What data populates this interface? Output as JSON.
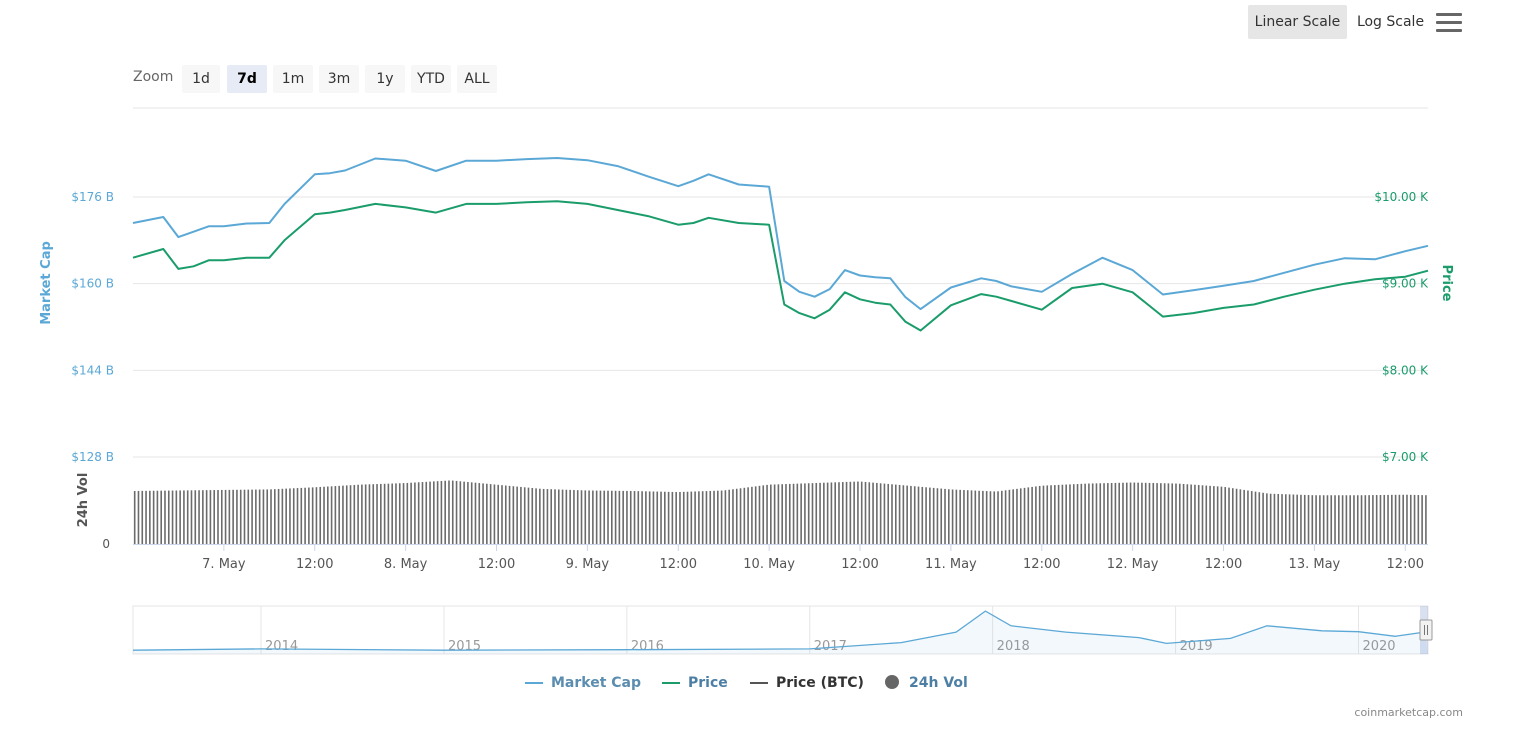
{
  "toolbar": {
    "linear_scale_label": "Linear Scale",
    "log_scale_label": "Log Scale",
    "menu_icon": "hamburger-menu-icon"
  },
  "zoom": {
    "label": "Zoom",
    "buttons": [
      "1d",
      "7d",
      "1m",
      "3m",
      "1y",
      "YTD",
      "ALL"
    ],
    "active": "7d"
  },
  "chart_data": {
    "type": "line",
    "left_axis": {
      "title": "Market Cap",
      "ticks": [
        "$176 B",
        "$160 B",
        "$144 B",
        "$128 B"
      ],
      "tick_values": [
        176,
        160,
        144,
        128
      ],
      "unit": "B USD",
      "color": "#5ba8d6"
    },
    "right_axis": {
      "title": "Price",
      "ticks": [
        "$10.00 K",
        "$9.00 K",
        "$8.00 K",
        "$7.00 K"
      ],
      "tick_values": [
        10.0,
        9.0,
        8.0,
        7.0
      ],
      "unit": "K USD",
      "color": "#1a9c6b"
    },
    "volume_axis": {
      "title": "24h Vol",
      "ticks": [
        "0"
      ]
    },
    "x_ticks": [
      "7. May",
      "12:00",
      "8. May",
      "12:00",
      "9. May",
      "12:00",
      "10. May",
      "12:00",
      "11. May",
      "12:00",
      "12. May",
      "12:00",
      "13. May",
      "12:00"
    ],
    "x_tick_hours": [
      12,
      24,
      36,
      48,
      60,
      72,
      84,
      96,
      108,
      120,
      132,
      144,
      156,
      168
    ],
    "x_range_hours": [
      0,
      171
    ],
    "series": [
      {
        "name": "Market Cap",
        "color": "#5ba8d6",
        "x": [
          0,
          4,
          6,
          8,
          10,
          12,
          15,
          18,
          20,
          24,
          26,
          28,
          32,
          36,
          40,
          44,
          48,
          52,
          56,
          60,
          64,
          68,
          72,
          74,
          76,
          80,
          84,
          86,
          88,
          90,
          92,
          94,
          96,
          98,
          100,
          102,
          104,
          108,
          112,
          114,
          116,
          120,
          124,
          128,
          132,
          136,
          140,
          144,
          148,
          152,
          156,
          160,
          164,
          168,
          171
        ],
        "values": [
          171.2,
          172.3,
          168.6,
          169.6,
          170.6,
          170.6,
          171.1,
          171.2,
          174.7,
          180.2,
          180.4,
          180.9,
          183.1,
          182.7,
          180.8,
          182.7,
          182.7,
          183.0,
          183.2,
          182.8,
          181.7,
          179.8,
          178.0,
          179.0,
          180.2,
          178.3,
          177.9,
          160.5,
          158.5,
          157.6,
          159.0,
          162.5,
          161.5,
          161.2,
          161.0,
          157.5,
          155.3,
          159.3,
          161.0,
          160.5,
          159.5,
          158.5,
          161.8,
          164.8,
          162.5,
          158.0,
          158.8,
          159.6,
          160.5,
          162.0,
          163.5,
          164.7,
          164.5,
          166.0,
          167.0
        ]
      },
      {
        "name": "Price",
        "color": "#1a9c6b",
        "x": [
          0,
          4,
          6,
          8,
          10,
          12,
          15,
          18,
          20,
          24,
          26,
          28,
          32,
          36,
          40,
          44,
          48,
          52,
          56,
          60,
          64,
          68,
          72,
          74,
          76,
          80,
          84,
          86,
          88,
          90,
          92,
          94,
          96,
          98,
          100,
          102,
          104,
          108,
          112,
          114,
          116,
          120,
          124,
          128,
          132,
          136,
          140,
          144,
          148,
          152,
          156,
          160,
          164,
          168,
          171
        ],
        "values": [
          9.3,
          9.4,
          9.17,
          9.2,
          9.27,
          9.27,
          9.3,
          9.3,
          9.5,
          9.8,
          9.82,
          9.85,
          9.92,
          9.88,
          9.82,
          9.92,
          9.92,
          9.94,
          9.95,
          9.92,
          9.85,
          9.78,
          9.68,
          9.7,
          9.76,
          9.7,
          9.68,
          8.76,
          8.66,
          8.6,
          8.7,
          8.9,
          8.82,
          8.78,
          8.76,
          8.56,
          8.46,
          8.75,
          8.88,
          8.85,
          8.8,
          8.7,
          8.95,
          9.0,
          8.9,
          8.62,
          8.66,
          8.72,
          8.76,
          8.85,
          8.93,
          9.0,
          9.05,
          9.08,
          9.15
        ]
      },
      {
        "name": "Price (BTC)",
        "color": "#555555",
        "x": [],
        "values": []
      },
      {
        "name": "24h Vol",
        "color": "#555555",
        "type": "column",
        "relative_values": true,
        "x": [
          0,
          12,
          18,
          24,
          30,
          36,
          42,
          48,
          54,
          60,
          66,
          72,
          78,
          84,
          96,
          108,
          114,
          120,
          126,
          132,
          138,
          144,
          150,
          156,
          162,
          168,
          171
        ],
        "values": [
          1.0,
          1.02,
          1.03,
          1.07,
          1.12,
          1.15,
          1.2,
          1.12,
          1.04,
          1.01,
          1.0,
          0.98,
          1.01,
          1.12,
          1.18,
          1.03,
          0.99,
          1.1,
          1.14,
          1.16,
          1.14,
          1.08,
          0.95,
          0.92,
          0.92,
          0.93,
          0.92
        ]
      }
    ],
    "navigator": {
      "year_labels": [
        "2014",
        "2015",
        "2016",
        "2017",
        "2018",
        "2019",
        "2020"
      ],
      "years": [
        2014,
        2015,
        2016,
        2017,
        2018,
        2019,
        2020
      ],
      "x_years": [
        2013.3,
        2014.0,
        2015.0,
        2016.0,
        2017.0,
        2017.5,
        2017.8,
        2017.96,
        2018.1,
        2018.4,
        2018.8,
        2018.95,
        2019.3,
        2019.5,
        2019.8,
        2020.0,
        2020.2,
        2020.36
      ],
      "relative_values": [
        0.02,
        0.05,
        0.02,
        0.03,
        0.05,
        0.2,
        0.45,
        0.95,
        0.6,
        0.45,
        0.32,
        0.18,
        0.3,
        0.6,
        0.48,
        0.46,
        0.35,
        0.45
      ],
      "range": [
        2013.3,
        2020.38
      ]
    },
    "grid": true,
    "legend_position": "bottom-center"
  },
  "legend": [
    {
      "label": "Market Cap",
      "color": "#5ba8d6",
      "marker": "line"
    },
    {
      "label": "Price",
      "color": "#1a9c6b",
      "marker": "line"
    },
    {
      "label": "Price (BTC)",
      "color": "#555555",
      "marker": "line"
    },
    {
      "label": "24h Vol",
      "color": "#666666",
      "marker": "circle"
    }
  ],
  "credit": "coinmarketcap.com"
}
